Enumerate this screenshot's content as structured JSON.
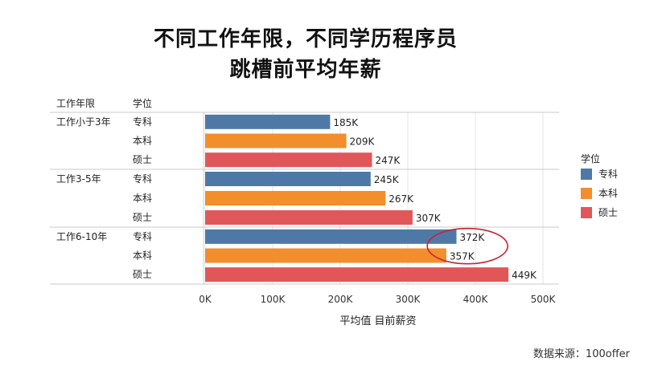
{
  "title_line1": "不同工作年限，不同学历程序员",
  "title_line2": "跳槽前平均年薪",
  "source": "数据来源：100offer",
  "chart_data": {
    "type": "bar",
    "orientation": "horizontal",
    "group_header": "工作年限",
    "category_header": "学位",
    "groups": [
      {
        "label": "工作小于3年",
        "rows": [
          {
            "category": "专科",
            "value": 185,
            "label": "185K"
          },
          {
            "category": "本科",
            "value": 209,
            "label": "209K"
          },
          {
            "category": "硕士",
            "value": 247,
            "label": "247K"
          }
        ]
      },
      {
        "label": "工作3-5年",
        "rows": [
          {
            "category": "专科",
            "value": 245,
            "label": "245K"
          },
          {
            "category": "本科",
            "value": 267,
            "label": "267K"
          },
          {
            "category": "硕士",
            "value": 307,
            "label": "307K"
          }
        ]
      },
      {
        "label": "工作6-10年",
        "rows": [
          {
            "category": "专科",
            "value": 372,
            "label": "372K"
          },
          {
            "category": "本科",
            "value": 357,
            "label": "357K"
          },
          {
            "category": "硕士",
            "value": 449,
            "label": "449K"
          }
        ]
      }
    ],
    "xlim": [
      0,
      500
    ],
    "xticks": [
      0,
      100,
      200,
      300,
      400,
      500
    ],
    "xtick_labels": [
      "0K",
      "100K",
      "200K",
      "300K",
      "400K",
      "500K"
    ],
    "xlabel": "平均值 目前薪资",
    "grid": true,
    "legend": {
      "title": "学位",
      "position": "right",
      "items": [
        {
          "name": "专科",
          "color": "#4e79a7"
        },
        {
          "name": "本科",
          "color": "#f28e2b"
        },
        {
          "name": "硕士",
          "color": "#e15759"
        }
      ]
    },
    "highlight_circle_rows": [
      "工作6-10年/专科",
      "工作6-10年/本科"
    ],
    "highlight_color": "#cc2233"
  }
}
